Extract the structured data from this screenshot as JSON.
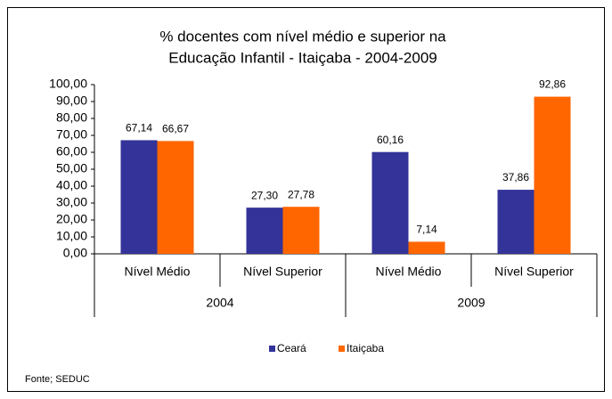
{
  "chart_data": {
    "type": "bar",
    "title": [
      "% docentes com nível médio e superior na",
      "Educação Infantil - Itaiçaba - 2004-2009"
    ],
    "categories": [
      "Nível Médio",
      "Nível Superior",
      "Nível Médio",
      "Nível Superior"
    ],
    "group_labels": [
      "2004",
      "2009"
    ],
    "series": [
      {
        "name": "Ceará",
        "color": "#333399",
        "values": [
          67.14,
          27.3,
          60.16,
          37.86
        ],
        "value_labels": [
          "67,14",
          "27,30",
          "60,16",
          "37,86"
        ]
      },
      {
        "name": "Itaiçaba",
        "color": "#ff6600",
        "values": [
          66.67,
          27.78,
          7.14,
          92.86
        ],
        "value_labels": [
          "66,67",
          "27,78",
          "7,14",
          "92,86"
        ]
      }
    ],
    "ylim": [
      0,
      100
    ],
    "yticks": [
      {
        "value": 0,
        "label": "0,00"
      },
      {
        "value": 10,
        "label": "10,00"
      },
      {
        "value": 20,
        "label": "20,00"
      },
      {
        "value": 30,
        "label": "30,00"
      },
      {
        "value": 40,
        "label": "40,00"
      },
      {
        "value": 50,
        "label": "50,00"
      },
      {
        "value": 60,
        "label": "60,00"
      },
      {
        "value": 70,
        "label": "70,00"
      },
      {
        "value": 80,
        "label": "80,00"
      },
      {
        "value": 90,
        "label": "90,00"
      },
      {
        "value": 100,
        "label": "100,00"
      }
    ],
    "legend": "bottom",
    "source": "Fonte; SEDUC"
  }
}
